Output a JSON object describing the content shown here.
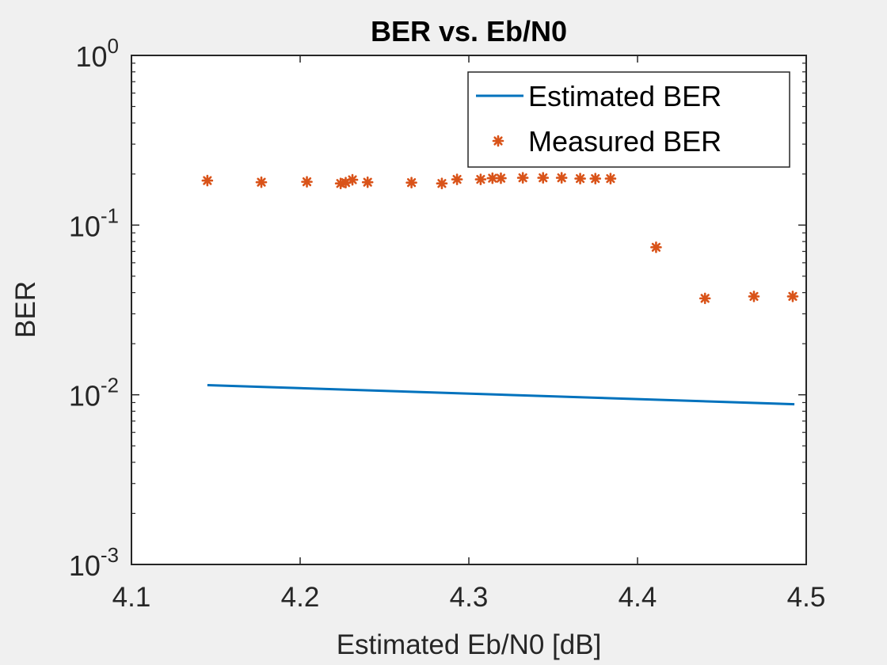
{
  "chart_data": {
    "type": "line",
    "title": "BER vs. Eb/N0",
    "xlabel": "Estimated Eb/N0 [dB]",
    "ylabel": "BER",
    "xlim": [
      4.1,
      4.5
    ],
    "ylim": [
      0.001,
      1
    ],
    "yscale": "log",
    "grid": false,
    "legend_position": "top-right",
    "x_ticks": [
      {
        "value": 4.1,
        "label": "4.1"
      },
      {
        "value": 4.2,
        "label": "4.2"
      },
      {
        "value": 4.3,
        "label": "4.3"
      },
      {
        "value": 4.4,
        "label": "4.4"
      },
      {
        "value": 4.5,
        "label": "4.5"
      }
    ],
    "y_ticks": [
      {
        "value": 1,
        "base": "10",
        "exponent": "0"
      },
      {
        "value": 0.1,
        "base": "10",
        "exponent": "-1"
      },
      {
        "value": 0.01,
        "base": "10",
        "exponent": "-2"
      },
      {
        "value": 0.001,
        "base": "10",
        "exponent": "-3"
      }
    ],
    "series": [
      {
        "name": "Estimated BER",
        "style": "line",
        "color": "#0072bd",
        "x": [
          4.145,
          4.493
        ],
        "y": [
          0.0114,
          0.0088
        ]
      },
      {
        "name": "Measured BER",
        "style": "markers",
        "color": "#d95319",
        "x": [
          4.145,
          4.177,
          4.204,
          4.224,
          4.227,
          4.231,
          4.24,
          4.266,
          4.284,
          4.293,
          4.307,
          4.314,
          4.319,
          4.332,
          4.344,
          4.355,
          4.366,
          4.375,
          4.384,
          4.411,
          4.44,
          4.469,
          4.492
        ],
        "y": [
          0.183,
          0.179,
          0.18,
          0.176,
          0.178,
          0.185,
          0.179,
          0.178,
          0.176,
          0.186,
          0.186,
          0.189,
          0.189,
          0.19,
          0.19,
          0.19,
          0.188,
          0.188,
          0.188,
          0.074,
          0.037,
          0.038,
          0.038
        ]
      }
    ]
  }
}
